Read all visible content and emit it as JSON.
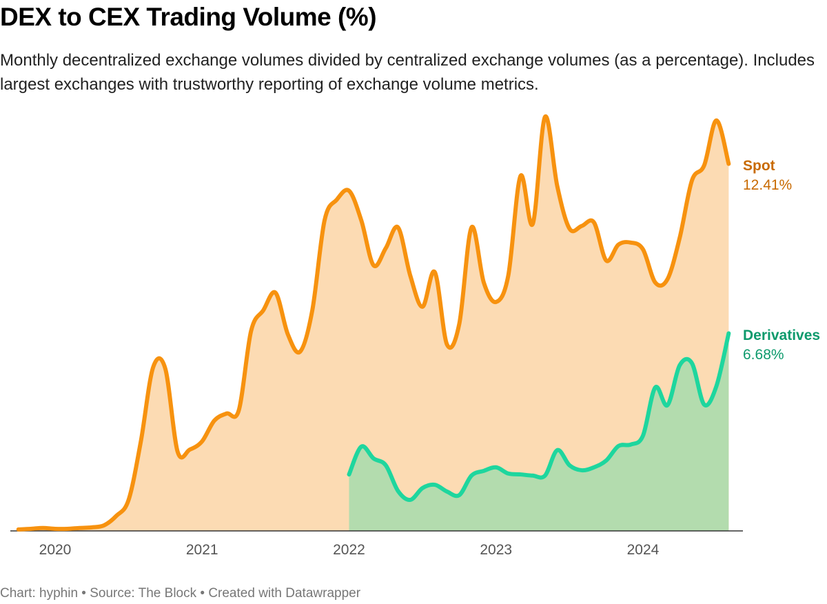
{
  "chart_data": {
    "type": "area",
    "title": "DEX to CEX Trading Volume (%)",
    "subtitle": "Monthly decentralized exchange volumes divided by centralized exchange volumes (as a percentage). Includes largest exchanges with trustworthy reporting of exchange volume metrics.",
    "source": "Chart: hyphin • Source: The Block • Created with Datawrapper",
    "categories": [
      null,
      null,
      null,
      "2020",
      null,
      null,
      null,
      null,
      null,
      null,
      null,
      null,
      null,
      null,
      null,
      "2021",
      null,
      null,
      null,
      null,
      null,
      null,
      null,
      null,
      null,
      null,
      null,
      "2022",
      null,
      null,
      null,
      null,
      null,
      null,
      null,
      null,
      null,
      null,
      null,
      "2023",
      null,
      null,
      null,
      null,
      null,
      null,
      null,
      null,
      null,
      null,
      null,
      "2024",
      null,
      null,
      null,
      null,
      null,
      null,
      null
    ],
    "ylim": [
      0,
      14.5
    ],
    "series": [
      {
        "name": "Spot",
        "color": "#f7920f",
        "fill": "#fcdbb3",
        "values": [
          0.05,
          0.07,
          0.1,
          0.07,
          0.07,
          0.1,
          0.12,
          0.19,
          0.51,
          1.05,
          3.03,
          5.53,
          5.48,
          2.68,
          2.75,
          3.03,
          3.73,
          3.97,
          4.08,
          6.76,
          7.46,
          8.05,
          6.65,
          6.06,
          7.46,
          10.5,
          11.2,
          11.5,
          10.5,
          8.98,
          9.56,
          10.26,
          8.63,
          7.58,
          8.75,
          6.3,
          7.0,
          10.26,
          8.4,
          7.74,
          8.63,
          12.0,
          10.38,
          14.0,
          11.66,
          10.22,
          10.31,
          10.43,
          9.14,
          9.68,
          9.75,
          9.52,
          8.4,
          8.51,
          9.91,
          11.85,
          12.36,
          13.88,
          12.41
        ],
        "value_labels": [
          null,
          null,
          null,
          null,
          null,
          null,
          null,
          null,
          null,
          null,
          null,
          null,
          null,
          null,
          null,
          null,
          null,
          null,
          null,
          null,
          null,
          null,
          null,
          null,
          null,
          null,
          null,
          null,
          null,
          null,
          null,
          null,
          null,
          null,
          null,
          null,
          null,
          null,
          null,
          null,
          null,
          null,
          null,
          null,
          null,
          null,
          null,
          null,
          null,
          null,
          null,
          null,
          null,
          null,
          null,
          null,
          null,
          null,
          "12.41%"
        ]
      },
      {
        "name": "Derivatives",
        "color": "#1ed69e",
        "fill": "#b3dcae",
        "values": [
          null,
          null,
          null,
          null,
          null,
          null,
          null,
          null,
          null,
          null,
          null,
          null,
          null,
          null,
          null,
          null,
          null,
          null,
          null,
          null,
          null,
          null,
          null,
          null,
          null,
          null,
          null,
          1.91,
          2.85,
          2.45,
          2.22,
          1.35,
          1.05,
          1.45,
          1.56,
          1.33,
          1.21,
          1.87,
          2.03,
          2.15,
          1.94,
          1.91,
          1.87,
          1.87,
          2.73,
          2.22,
          2.05,
          2.15,
          2.38,
          2.87,
          2.92,
          3.22,
          4.85,
          4.25,
          5.6,
          5.67,
          4.27,
          4.9,
          6.68
        ],
        "value_labels": [
          null,
          null,
          null,
          null,
          null,
          null,
          null,
          null,
          null,
          null,
          null,
          null,
          null,
          null,
          null,
          null,
          null,
          null,
          null,
          null,
          null,
          null,
          null,
          null,
          null,
          null,
          null,
          null,
          null,
          null,
          null,
          null,
          null,
          null,
          null,
          null,
          null,
          null,
          null,
          null,
          null,
          null,
          null,
          null,
          null,
          null,
          null,
          null,
          null,
          null,
          null,
          null,
          null,
          null,
          null,
          null,
          null,
          null,
          "6.68%"
        ]
      }
    ]
  }
}
